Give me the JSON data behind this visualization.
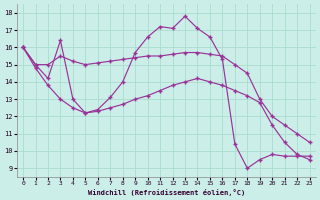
{
  "xlabel": "Windchill (Refroidissement éolien,°C)",
  "bg_color": "#cceee8",
  "grid_color": "#aaddcc",
  "line_color": "#993399",
  "xlim": [
    -0.5,
    23.5
  ],
  "ylim": [
    8.5,
    18.5
  ],
  "yticks": [
    9,
    10,
    11,
    12,
    13,
    14,
    15,
    16,
    17,
    18
  ],
  "xticks": [
    0,
    1,
    2,
    3,
    4,
    5,
    6,
    7,
    8,
    9,
    10,
    11,
    12,
    13,
    14,
    15,
    16,
    17,
    18,
    19,
    20,
    21,
    22,
    23
  ],
  "curve1_x": [
    0,
    1,
    2,
    3,
    4,
    5,
    6,
    7,
    8,
    9,
    10,
    11,
    12,
    13,
    14,
    15,
    16,
    17,
    18,
    19,
    20,
    21,
    22,
    23
  ],
  "curve1_y": [
    16.0,
    15.0,
    14.2,
    16.4,
    13.0,
    12.2,
    12.4,
    13.1,
    14.0,
    15.7,
    16.6,
    17.2,
    17.1,
    17.8,
    17.1,
    16.6,
    15.3,
    10.4,
    9.0,
    9.5,
    9.8,
    9.7,
    9.7,
    9.7
  ],
  "curve2_x": [
    0,
    1,
    2,
    3,
    4,
    5,
    6,
    7,
    8,
    9,
    10,
    11,
    12,
    13,
    14,
    15,
    16,
    17,
    18,
    19,
    20,
    21,
    22,
    23
  ],
  "curve2_y": [
    16.0,
    15.0,
    15.0,
    15.5,
    15.2,
    15.0,
    15.1,
    15.2,
    15.3,
    15.4,
    15.5,
    15.5,
    15.6,
    15.7,
    15.7,
    15.6,
    15.5,
    15.0,
    14.5,
    13.0,
    12.0,
    11.5,
    11.0,
    10.5
  ],
  "curve3_x": [
    0,
    1,
    2,
    3,
    4,
    5,
    6,
    7,
    8,
    9,
    10,
    11,
    12,
    13,
    14,
    15,
    16,
    17,
    18,
    19,
    20,
    21,
    22,
    23
  ],
  "curve3_y": [
    16.0,
    14.8,
    13.8,
    13.0,
    12.5,
    12.2,
    12.3,
    12.5,
    12.7,
    13.0,
    13.2,
    13.5,
    13.8,
    14.0,
    14.2,
    14.0,
    13.8,
    13.5,
    13.2,
    12.8,
    11.5,
    10.5,
    9.8,
    9.5
  ]
}
